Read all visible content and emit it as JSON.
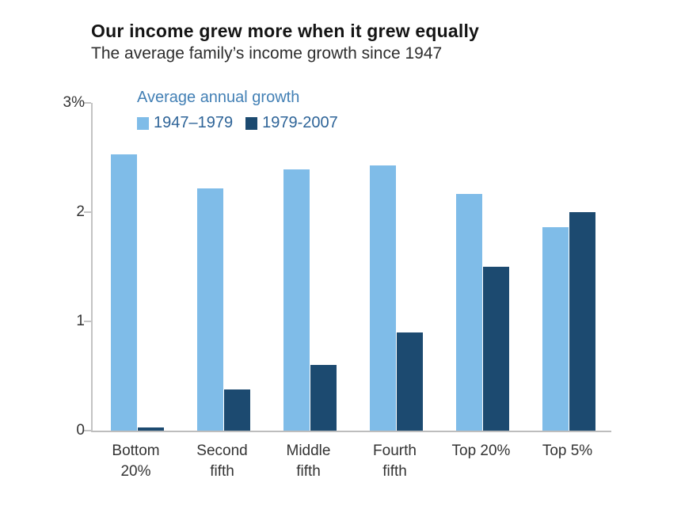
{
  "header": {
    "title": "Our income grew more when it grew equally",
    "subtitle": "The average family’s income growth since 1947"
  },
  "legend": {
    "title": "Average annual growth",
    "items": [
      {
        "label": "1947–1979",
        "color": "#7fbce8"
      },
      {
        "label": "1979-2007",
        "color": "#1c4a70"
      }
    ]
  },
  "axes": {
    "y_ticks": [
      {
        "label": "3%",
        "value": 3
      },
      {
        "label": "2",
        "value": 2
      },
      {
        "label": "1",
        "value": 1
      },
      {
        "label": "0",
        "value": 0
      }
    ]
  },
  "chart_data": {
    "type": "bar",
    "title": "Our income grew more when it grew equally",
    "subtitle": "The average family’s income growth since 1947",
    "legend_title": "Average annual growth",
    "categories": [
      "Bottom 20%",
      "Second fifth",
      "Middle fifth",
      "Fourth fifth",
      "Top 20%",
      "Top 5%"
    ],
    "category_label_lines": [
      [
        "Bottom",
        "20%"
      ],
      [
        "Second",
        "fifth"
      ],
      [
        "Middle",
        "fifth"
      ],
      [
        "Fourth",
        "fifth"
      ],
      [
        "Top 20%"
      ],
      [
        "Top 5%"
      ]
    ],
    "series": [
      {
        "name": "1947–1979",
        "color": "#7fbce8",
        "values": [
          2.53,
          2.22,
          2.39,
          2.43,
          2.17,
          1.86
        ]
      },
      {
        "name": "1979-2007",
        "color": "#1c4a70",
        "values": [
          0.03,
          0.38,
          0.6,
          0.9,
          1.5,
          2.0
        ]
      }
    ],
    "xlabel": "",
    "ylabel": "",
    "unit": "%",
    "ylim": [
      0,
      3
    ],
    "yticks": [
      0,
      1,
      2,
      3
    ],
    "ytick_labels": [
      "0",
      "1",
      "2",
      "3%"
    ],
    "grid": false,
    "legend_position": "top-left"
  }
}
